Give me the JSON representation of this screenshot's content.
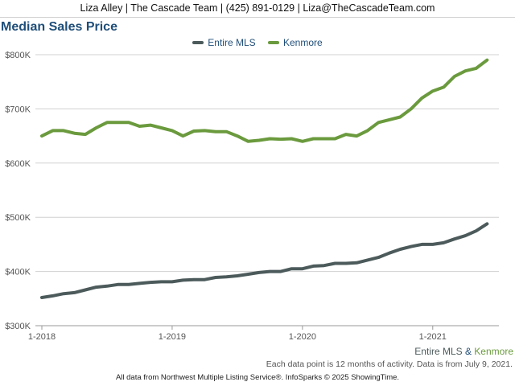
{
  "header": {
    "text": "Liza Alley | The Cascade Team | (425) 891-0129 | Liza@TheCascadeTeam.com"
  },
  "colors": {
    "entire_mls": "#4c5a5b",
    "kenmore": "#6a9a3d",
    "title": "#1f4e79",
    "grid": "#d0d0d0"
  },
  "chart_data": {
    "type": "line",
    "title": "Median Sales Price",
    "xlabel": "",
    "ylabel": "",
    "ylim": [
      300000,
      800000
    ],
    "y_ticks": [
      300000,
      400000,
      500000,
      600000,
      700000,
      800000
    ],
    "y_tick_labels": [
      "$300K",
      "$400K",
      "$500K",
      "$600K",
      "$700K",
      "$800K"
    ],
    "x_tick_labels": [
      "1-2018",
      "1-2019",
      "1-2020",
      "1-2021"
    ],
    "x_tick_dates": [
      "2018-01",
      "2019-01",
      "2020-01",
      "2021-01"
    ],
    "x": [
      "2018-01",
      "2018-02",
      "2018-03",
      "2018-04",
      "2018-05",
      "2018-06",
      "2018-07",
      "2018-08",
      "2018-09",
      "2018-10",
      "2018-11",
      "2018-12",
      "2019-01",
      "2019-02",
      "2019-03",
      "2019-04",
      "2019-05",
      "2019-06",
      "2019-07",
      "2019-08",
      "2019-09",
      "2019-10",
      "2019-11",
      "2019-12",
      "2020-01",
      "2020-02",
      "2020-03",
      "2020-04",
      "2020-05",
      "2020-06",
      "2020-07",
      "2020-08",
      "2020-09",
      "2020-10",
      "2020-11",
      "2020-12",
      "2021-01",
      "2021-02",
      "2021-03",
      "2021-04",
      "2021-05",
      "2021-06"
    ],
    "series": [
      {
        "name": "Entire MLS",
        "values": [
          352000,
          355000,
          359000,
          361000,
          366000,
          371000,
          373000,
          376000,
          376000,
          378000,
          380000,
          381000,
          381000,
          384000,
          385000,
          385000,
          389000,
          390000,
          392000,
          395000,
          398000,
          400000,
          400000,
          405000,
          405000,
          410000,
          411000,
          415000,
          415000,
          416000,
          421000,
          426000,
          434000,
          441000,
          446000,
          450000,
          450000,
          453000,
          460000,
          466000,
          475000,
          488000
        ]
      },
      {
        "name": "Kenmore",
        "values": [
          650000,
          660000,
          660000,
          655000,
          653000,
          665000,
          675000,
          675000,
          675000,
          668000,
          670000,
          665000,
          660000,
          650000,
          659000,
          660000,
          658000,
          658000,
          650000,
          640000,
          642000,
          645000,
          644000,
          645000,
          640000,
          645000,
          645000,
          645000,
          653000,
          650000,
          660000,
          675000,
          680000,
          685000,
          700000,
          720000,
          733000,
          740000,
          760000,
          770000,
          775000,
          790000
        ]
      }
    ],
    "grid": true,
    "legend_position": "top-center"
  },
  "footer": {
    "series_a": "Entire MLS",
    "amp": " & ",
    "series_b": "Kenmore",
    "note": "Each data point is 12 months of activity. Data is from July 9, 2021.",
    "source": "All data from Northwest Multiple Listing Service®. InfoSparks © 2025 ShowingTime."
  }
}
